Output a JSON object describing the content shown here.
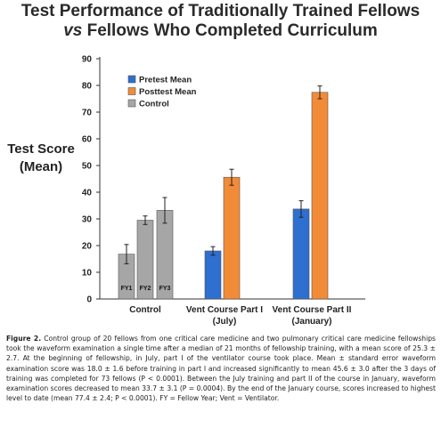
{
  "chart_data": {
    "type": "bar",
    "title_line1": "Test Performance of Traditionally Trained Fellows",
    "title_line2_vs": "vs",
    "title_line2_rest": " Fellows Who Completed Curriculum",
    "ylabel_line1": "Test Score",
    "ylabel_line2": "(Mean)",
    "ylim": [
      0,
      90
    ],
    "yticks": [
      "0",
      "10",
      "20",
      "30",
      "40",
      "50",
      "60",
      "70",
      "80",
      "90"
    ],
    "legend_placement": "top-left",
    "legend": [
      {
        "name": "Pretest Mean",
        "color": "#2e6fcf"
      },
      {
        "name": "Posttest Mean",
        "color": "#f28b38"
      },
      {
        "name": "Control",
        "color": "#a6a6a6"
      }
    ],
    "groups": [
      {
        "label_line1": "Control",
        "label_line2": "",
        "bars": [
          {
            "label": "FY1",
            "series": "Control",
            "value": 16.8,
            "err": 3.6
          },
          {
            "label": "FY2",
            "series": "Control",
            "value": 29.5,
            "err": 1.6
          },
          {
            "label": "FY3",
            "series": "Control",
            "value": 33.2,
            "err": 4.8
          }
        ]
      },
      {
        "label_line1": "Vent Course Part I",
        "label_line2": "(July)",
        "bars": [
          {
            "label": "",
            "series": "Pretest Mean",
            "value": 18.0,
            "err": 1.6
          },
          {
            "label": "",
            "series": "Posttest Mean",
            "value": 45.6,
            "err": 3.0
          }
        ]
      },
      {
        "label_line1": "Vent Course Part II",
        "label_line2": "(January)",
        "bars": [
          {
            "label": "",
            "series": "Pretest Mean",
            "value": 33.7,
            "err": 3.1
          },
          {
            "label": "",
            "series": "Posttest Mean",
            "value": 77.4,
            "err": 2.4
          }
        ]
      }
    ]
  },
  "caption": {
    "lead": "Figure 2.",
    "text": " Control group of 20 fellows from one critical care medicine and two pulmonary critical care medicine fellowships took the waveform examination a single time after a median of 21 months of fellowship training, with a mean score of 25.3 ± 2.7. At the beginning of fellowship, in July, part I of the ventilator course took place. Mean ± standard error waveform examination score was 18.0 ± 1.6 before training in part I and increased significantly to mean 45.6 ± 3.0 after the 3 days of training was completed for 73 fellows (P < 0.0001). Between the July training and part II of the course in January, waveform examination scores decreased to mean 33.7 ± 3.1 (P = 0.0004). By the end of the January course, scores increased to highest level to date (mean 77.4 ± 2.4; P < 0.0001). FY = Fellow Year; Vent = Ventilator."
  }
}
